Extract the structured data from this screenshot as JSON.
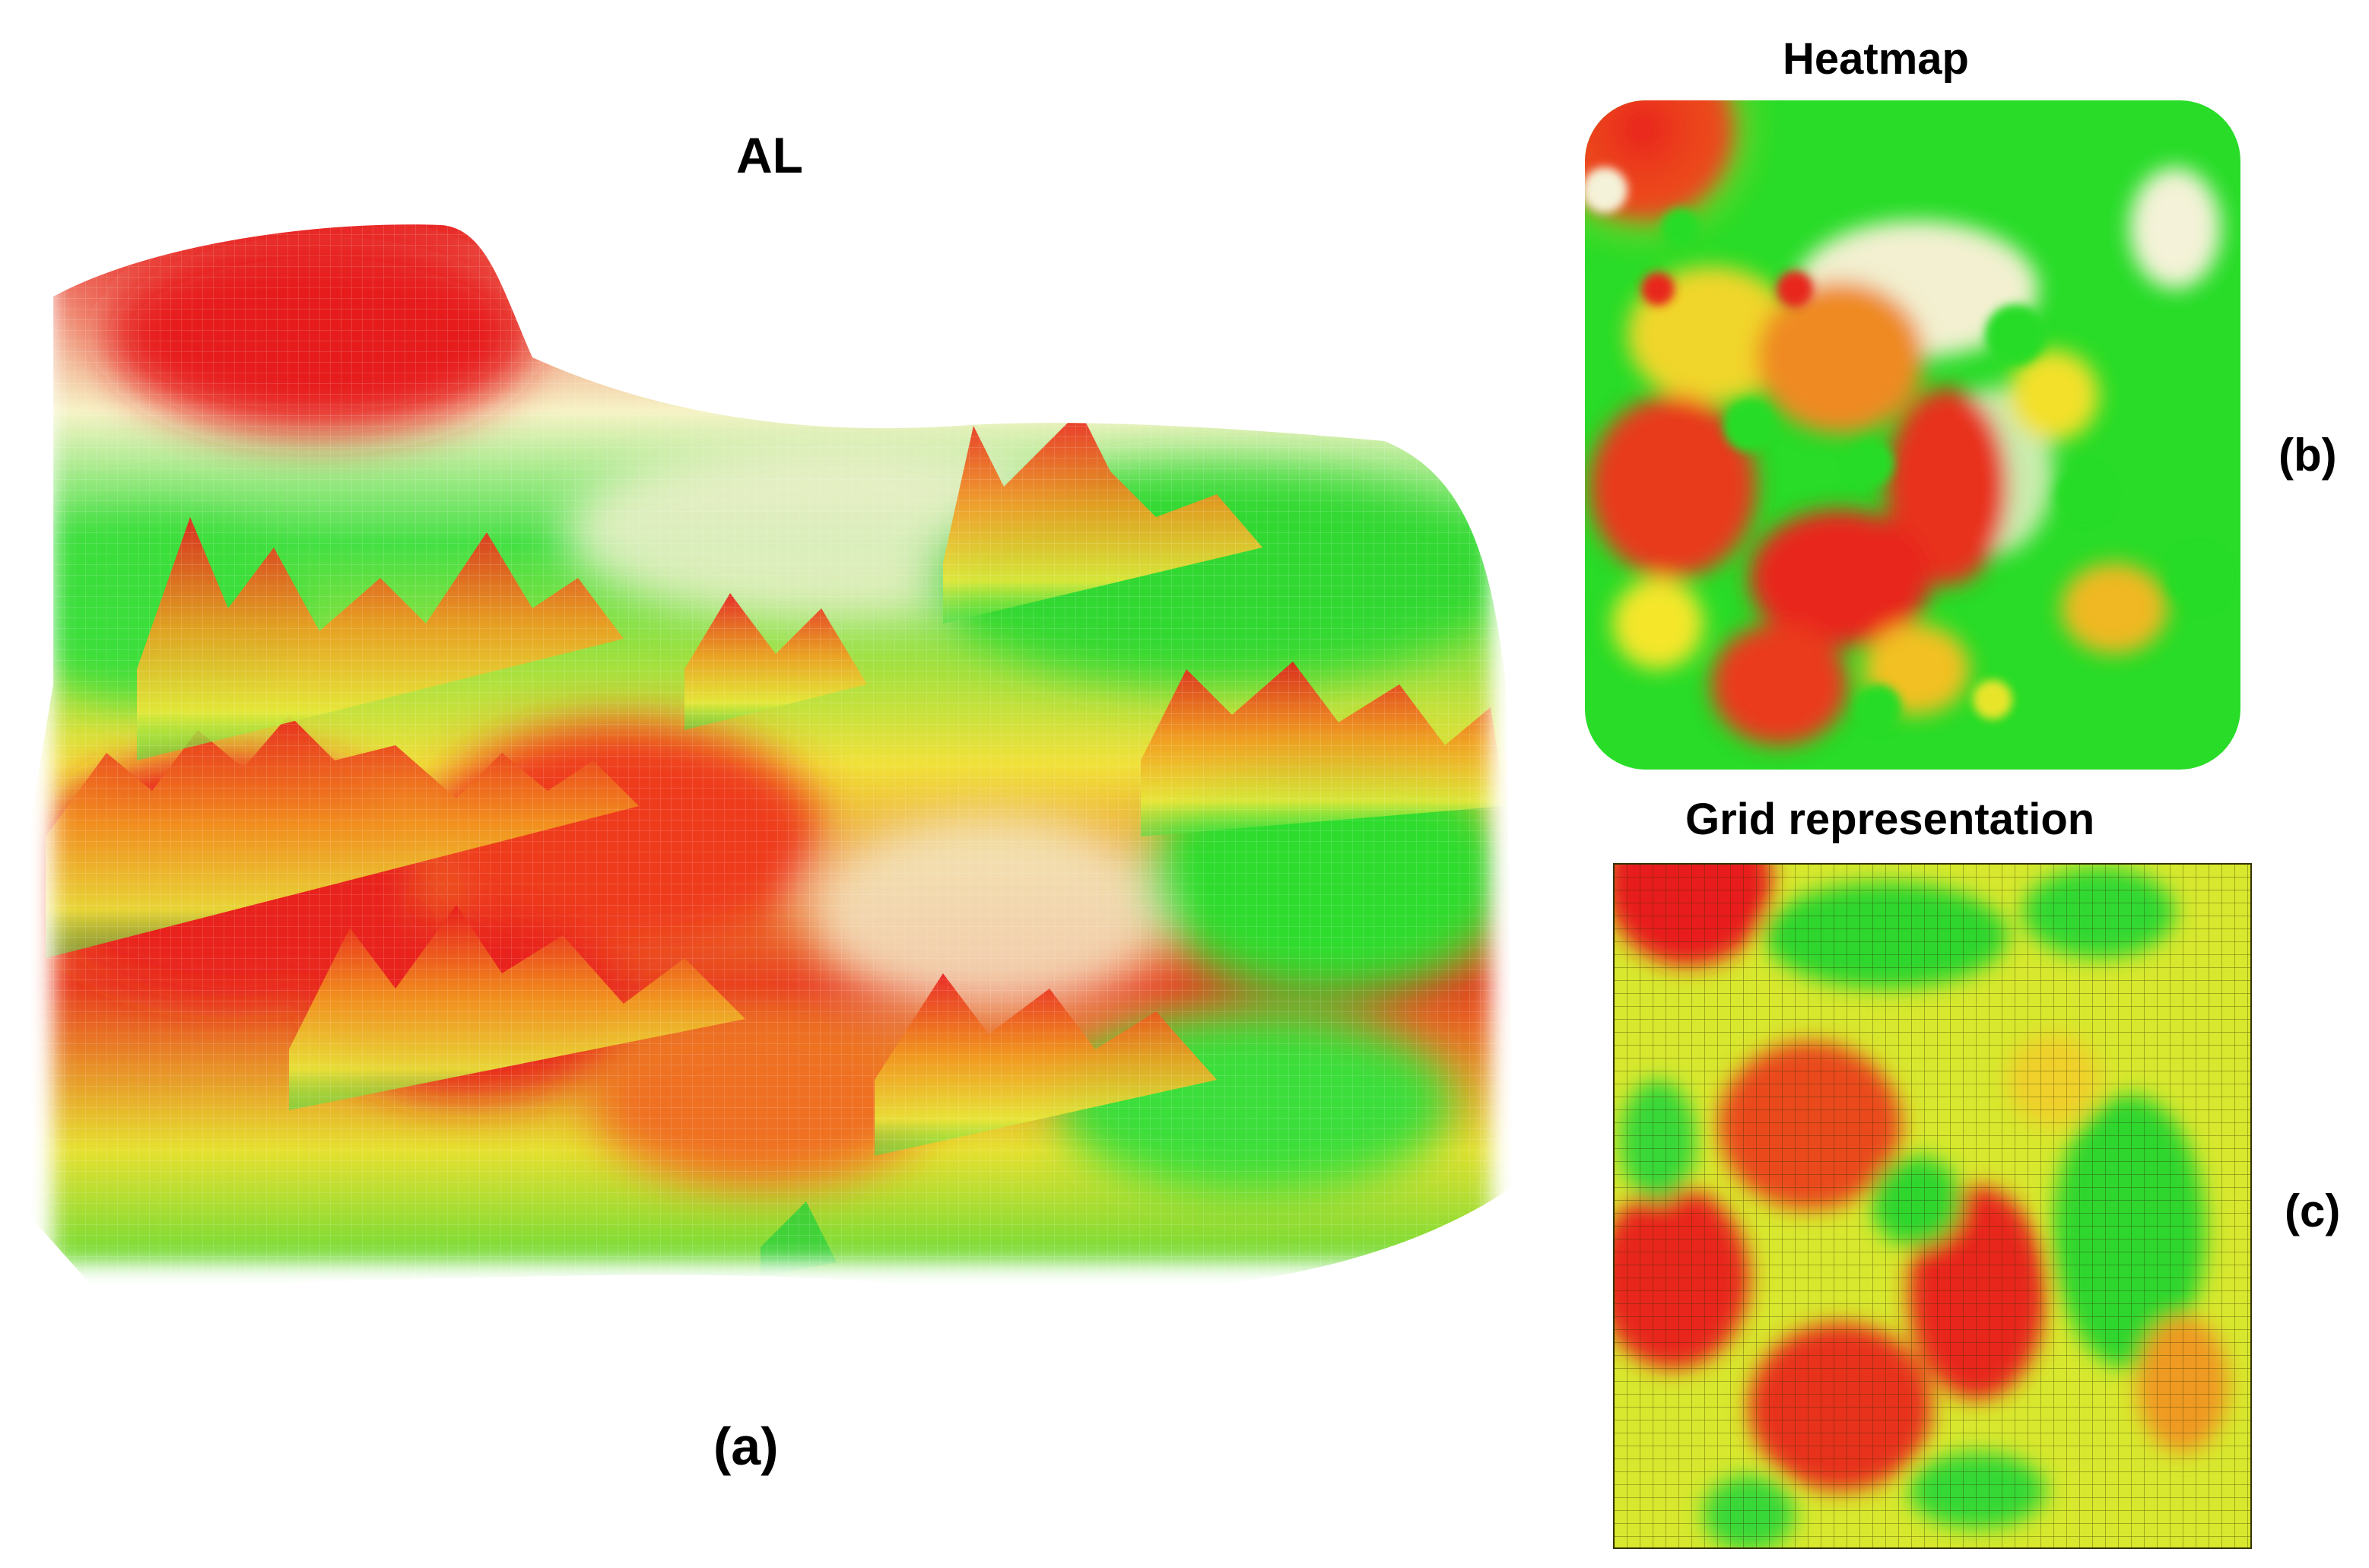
{
  "panel_a": {
    "title": "AL",
    "caption": "(a)"
  },
  "panel_b": {
    "title": "Heatmap",
    "caption": "(b)"
  },
  "panel_c": {
    "title": "Grid representation",
    "caption": "(c)"
  },
  "colors": {
    "low": "#22dd22",
    "mid": "#f2f200",
    "high": "#e81c1c",
    "background": "#ffffff"
  }
}
